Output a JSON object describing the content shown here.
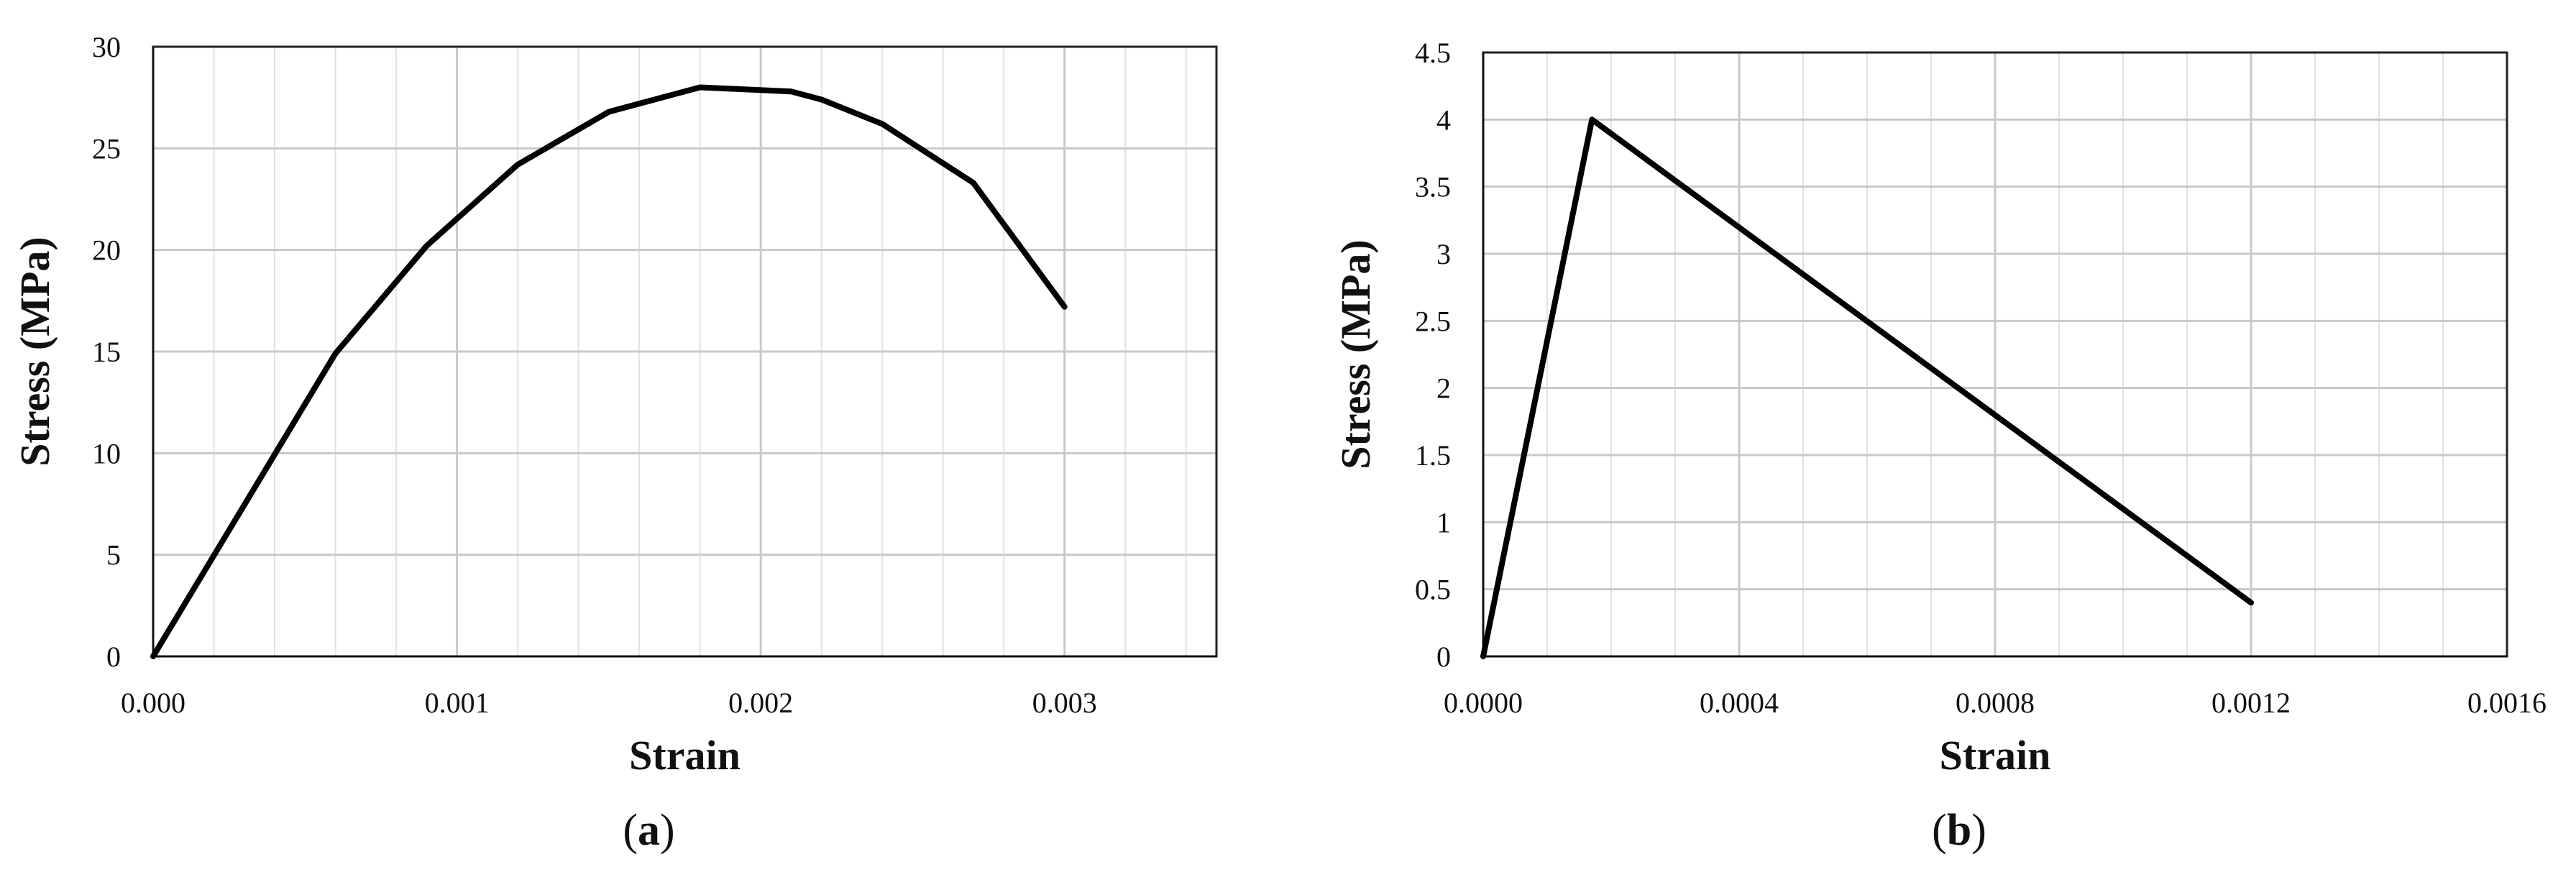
{
  "chart_data": [
    {
      "type": "line",
      "panel_label_open": "(",
      "panel_label_letter": "a",
      "panel_label_close": ")",
      "xlabel": "Strain",
      "ylabel": "Stress (MPa)",
      "xlim": [
        0,
        0.0035
      ],
      "ylim": [
        0,
        30
      ],
      "xticks": [
        0.0,
        0.001,
        0.002,
        0.003
      ],
      "xtick_labels": [
        "0.000",
        "0.001",
        "0.002",
        "0.003"
      ],
      "yticks": [
        0,
        5,
        10,
        15,
        20,
        25,
        30
      ],
      "ytick_labels": [
        "0",
        "5",
        "10",
        "15",
        "20",
        "25",
        "30"
      ],
      "x_minor_step": 0.0002,
      "grid": true,
      "series": [
        {
          "x": [
            0,
            0.0006,
            0.0009,
            0.0012,
            0.0015,
            0.0018,
            0.0021,
            0.0022,
            0.0024,
            0.0027,
            0.003
          ],
          "y": [
            0,
            14.9,
            20.2,
            24.2,
            26.8,
            28.0,
            27.8,
            27.4,
            26.2,
            23.3,
            17.2
          ]
        }
      ]
    },
    {
      "type": "line",
      "panel_label_open": "(",
      "panel_label_letter": "b",
      "panel_label_close": ")",
      "xlabel": "Strain",
      "ylabel": "Stress (MPa)",
      "xlim": [
        0,
        0.0016
      ],
      "ylim": [
        0,
        4.5
      ],
      "xticks": [
        0,
        0.0004,
        0.0008,
        0.0012,
        0.0016
      ],
      "xtick_labels": [
        "0.0000",
        "0.0004",
        "0.0008",
        "0.0012",
        "0.0016"
      ],
      "yticks": [
        0,
        0.5,
        1,
        1.5,
        2,
        2.5,
        3,
        3.5,
        4,
        4.5
      ],
      "ytick_labels": [
        "0",
        "0.5",
        "1",
        "1.5",
        "2",
        "2.5",
        "3",
        "3.5",
        "4",
        "4.5"
      ],
      "x_minor_step": 0.0001,
      "grid": true,
      "series": [
        {
          "x": [
            0,
            0.00017,
            0.0012
          ],
          "y": [
            0,
            4.0,
            0.4
          ]
        }
      ]
    }
  ]
}
